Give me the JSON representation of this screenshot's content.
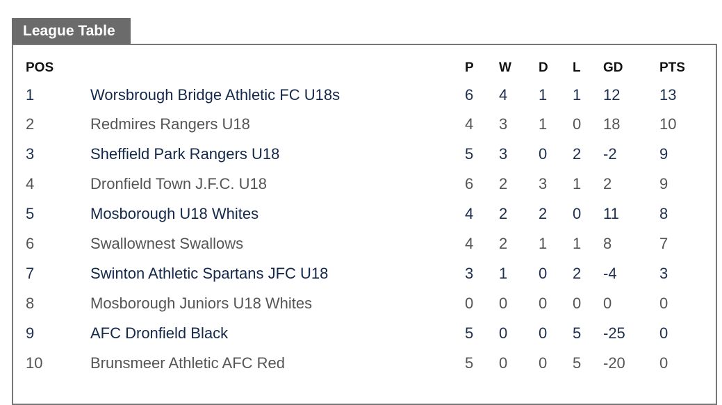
{
  "widget": {
    "title": "League Table"
  },
  "table": {
    "headers": {
      "pos": "POS",
      "team": "",
      "p": "P",
      "w": "W",
      "d": "D",
      "l": "L",
      "gd": "GD",
      "pts": "PTS"
    },
    "rows": [
      {
        "pos": "1",
        "team": "Worsbrough Bridge Athletic FC U18s",
        "p": "6",
        "w": "4",
        "d": "1",
        "l": "1",
        "gd": "12",
        "pts": "13"
      },
      {
        "pos": "2",
        "team": "Redmires Rangers U18",
        "p": "4",
        "w": "3",
        "d": "1",
        "l": "0",
        "gd": "18",
        "pts": "10"
      },
      {
        "pos": "3",
        "team": "Sheffield Park Rangers U18",
        "p": "5",
        "w": "3",
        "d": "0",
        "l": "2",
        "gd": "-2",
        "pts": "9"
      },
      {
        "pos": "4",
        "team": "Dronfield Town J.F.C. U18",
        "p": "6",
        "w": "2",
        "d": "3",
        "l": "1",
        "gd": "2",
        "pts": "9"
      },
      {
        "pos": "5",
        "team": "Mosborough U18 Whites",
        "p": "4",
        "w": "2",
        "d": "2",
        "l": "0",
        "gd": "11",
        "pts": "8"
      },
      {
        "pos": "6",
        "team": "Swallownest Swallows",
        "p": "4",
        "w": "2",
        "d": "1",
        "l": "1",
        "gd": "8",
        "pts": "7"
      },
      {
        "pos": "7",
        "team": "Swinton Athletic Spartans JFC U18",
        "p": "3",
        "w": "1",
        "d": "0",
        "l": "2",
        "gd": "-4",
        "pts": "3"
      },
      {
        "pos": "8",
        "team": "Mosborough Juniors U18 Whites",
        "p": "0",
        "w": "0",
        "d": "0",
        "l": "0",
        "gd": "0",
        "pts": "0"
      },
      {
        "pos": "9",
        "team": "AFC Dronfield Black",
        "p": "5",
        "w": "0",
        "d": "0",
        "l": "5",
        "gd": "-25",
        "pts": "0"
      },
      {
        "pos": "10",
        "team": "Brunsmeer Athletic AFC Red",
        "p": "5",
        "w": "0",
        "d": "0",
        "l": "5",
        "gd": "-20",
        "pts": "0"
      }
    ]
  },
  "colors": {
    "tab_background": "#6b6b6b",
    "border": "#777777",
    "row_text_odd": "#1e2f4f",
    "row_text_even": "#555555"
  }
}
